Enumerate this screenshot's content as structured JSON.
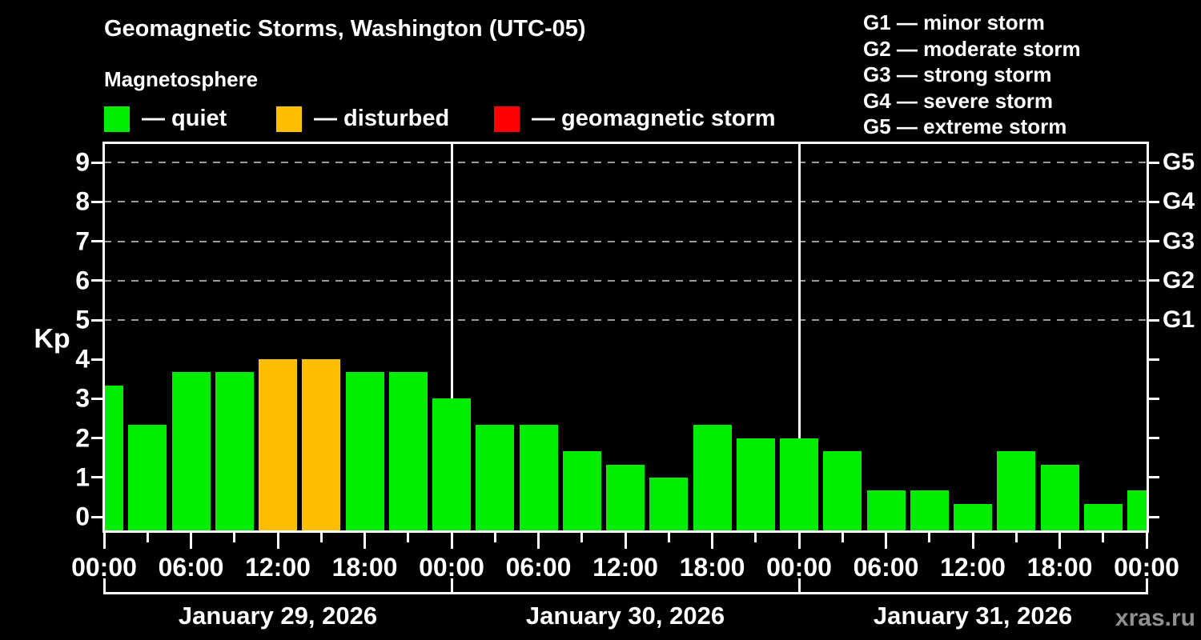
{
  "watermark": "xras.ru",
  "chart_data": {
    "type": "bar",
    "title": "Geomagnetic Storms, Washington (UTC-05)",
    "subtitle": "Magnetosphere",
    "xlabel": "",
    "ylabel": "Kp",
    "ylim": [
      0,
      9.5
    ],
    "grid": "dashed horizontal at Kp 5-9",
    "y_ticks": [
      0,
      1,
      2,
      3,
      4,
      5,
      6,
      7,
      8,
      9
    ],
    "right_axis_labels": [
      {
        "kp": 5,
        "label": "G1"
      },
      {
        "kp": 6,
        "label": "G2"
      },
      {
        "kp": 7,
        "label": "G3"
      },
      {
        "kp": 8,
        "label": "G4"
      },
      {
        "kp": 9,
        "label": "G5"
      }
    ],
    "grid_levels_kp": [
      5,
      6,
      7,
      8,
      9
    ],
    "x_hours_total": 72,
    "x_tick_labels": [
      {
        "hour": 0,
        "label": "00:00"
      },
      {
        "hour": 6,
        "label": "06:00"
      },
      {
        "hour": 12,
        "label": "12:00"
      },
      {
        "hour": 18,
        "label": "18:00"
      },
      {
        "hour": 24,
        "label": "00:00"
      },
      {
        "hour": 30,
        "label": "06:00"
      },
      {
        "hour": 36,
        "label": "12:00"
      },
      {
        "hour": 42,
        "label": "18:00"
      },
      {
        "hour": 48,
        "label": "00:00"
      },
      {
        "hour": 54,
        "label": "06:00"
      },
      {
        "hour": 60,
        "label": "12:00"
      },
      {
        "hour": 66,
        "label": "18:00"
      },
      {
        "hour": 72,
        "label": "00:00"
      }
    ],
    "x_minor_tick_hours": [
      3,
      9,
      15,
      21,
      27,
      33,
      39,
      45,
      51,
      57,
      63,
      69
    ],
    "days": [
      {
        "label": "January 29, 2026",
        "start_hour": 0,
        "end_hour": 24
      },
      {
        "label": "January 30, 2026",
        "start_hour": 24,
        "end_hour": 48
      },
      {
        "label": "January 31, 2026",
        "start_hour": 48,
        "end_hour": 72
      }
    ],
    "colors": {
      "quiet": "#00ec00",
      "disturbed": "#ffbf00",
      "storm": "#ff0000"
    },
    "legend": {
      "items": [
        {
          "name": "quiet",
          "label": "— quiet",
          "color": "#00ec00"
        },
        {
          "name": "disturbed",
          "label": "— disturbed",
          "color": "#ffbf00"
        },
        {
          "name": "storm",
          "label": "— geomagnetic storm",
          "color": "#ff0000"
        }
      ]
    },
    "storm_scale": {
      "items": [
        {
          "label": "G1 — minor storm"
        },
        {
          "label": "G2 — moderate storm"
        },
        {
          "label": "G3 — strong storm"
        },
        {
          "label": "G4 — severe storm"
        },
        {
          "label": "G5 — extreme storm"
        }
      ]
    },
    "bars": [
      {
        "hour": 0,
        "kp": 3.33,
        "status": "quiet"
      },
      {
        "hour": 3,
        "kp": 2.33,
        "status": "quiet"
      },
      {
        "hour": 6,
        "kp": 3.67,
        "status": "quiet"
      },
      {
        "hour": 9,
        "kp": 3.67,
        "status": "quiet"
      },
      {
        "hour": 12,
        "kp": 4.0,
        "status": "disturbed"
      },
      {
        "hour": 15,
        "kp": 4.0,
        "status": "disturbed"
      },
      {
        "hour": 18,
        "kp": 3.67,
        "status": "quiet"
      },
      {
        "hour": 21,
        "kp": 3.67,
        "status": "quiet"
      },
      {
        "hour": 24,
        "kp": 3.0,
        "status": "quiet"
      },
      {
        "hour": 27,
        "kp": 2.33,
        "status": "quiet"
      },
      {
        "hour": 30,
        "kp": 2.33,
        "status": "quiet"
      },
      {
        "hour": 33,
        "kp": 1.67,
        "status": "quiet"
      },
      {
        "hour": 36,
        "kp": 1.33,
        "status": "quiet"
      },
      {
        "hour": 39,
        "kp": 1.0,
        "status": "quiet"
      },
      {
        "hour": 42,
        "kp": 2.33,
        "status": "quiet"
      },
      {
        "hour": 45,
        "kp": 2.0,
        "status": "quiet"
      },
      {
        "hour": 48,
        "kp": 2.0,
        "status": "quiet"
      },
      {
        "hour": 51,
        "kp": 1.67,
        "status": "quiet"
      },
      {
        "hour": 54,
        "kp": 0.67,
        "status": "quiet"
      },
      {
        "hour": 57,
        "kp": 0.67,
        "status": "quiet"
      },
      {
        "hour": 60,
        "kp": 0.33,
        "status": "quiet"
      },
      {
        "hour": 63,
        "kp": 1.67,
        "status": "quiet"
      },
      {
        "hour": 66,
        "kp": 1.33,
        "status": "quiet"
      },
      {
        "hour": 69,
        "kp": 0.33,
        "status": "quiet"
      },
      {
        "hour": 72,
        "kp": 0.67,
        "status": "quiet"
      }
    ]
  }
}
